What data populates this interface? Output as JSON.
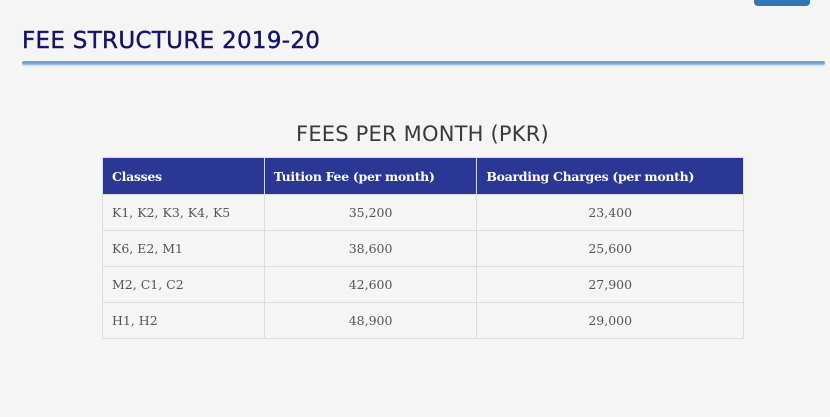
{
  "header": {
    "title": "FEE STRUCTURE 2019-20",
    "accent_color": "#141466",
    "underline_color": "#6b9bd0",
    "top_button_color": "#3075b8"
  },
  "section": {
    "title": "FEES PER MONTH (PKR)"
  },
  "table": {
    "header_bg": "#2b3794",
    "columns": [
      "Classes",
      "Tuition Fee (per month)",
      "Boarding Charges (per month)"
    ],
    "rows": [
      {
        "classes": "K1, K2, K3, K4, K5",
        "tuition": "35,200",
        "boarding": "23,400"
      },
      {
        "classes": "K6, E2, M1",
        "tuition": "38,600",
        "boarding": "25,600"
      },
      {
        "classes": "M2, C1, C2",
        "tuition": "42,600",
        "boarding": "27,900"
      },
      {
        "classes": "H1, H2",
        "tuition": "48,900",
        "boarding": "29,000"
      }
    ]
  }
}
